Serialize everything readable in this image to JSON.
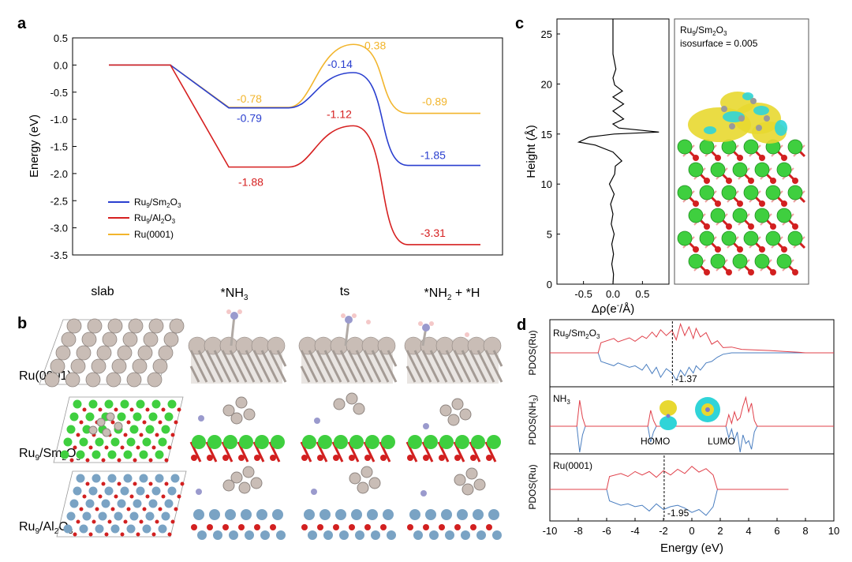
{
  "panels": {
    "a": "a",
    "b": "b",
    "c": "c",
    "d": "d"
  },
  "colors": {
    "sm2o3": "#2a3fcf",
    "al2o3": "#d62020",
    "ru0001": "#f2b52c",
    "pdos_up": "#e0404a",
    "pdos_down": "#4a7ec0",
    "ru_atom": "#c9bdb6",
    "sm_atom": "#3fcf3f",
    "o_atom": "#d22020",
    "al_atom": "#7aa3c4",
    "n_atom": "#9a9acd",
    "h_atom": "#f4c8c8",
    "iso_yellow": "#e8d830",
    "iso_cyan": "#30d4d8"
  },
  "chart_data": [
    {
      "id": "a",
      "type": "line",
      "ylabel": "Energy (eV)",
      "ylim": [
        -3.5,
        0.5
      ],
      "yticks": [
        "0.5",
        "0.0",
        "-0.5",
        "-1.0",
        "-1.5",
        "-2.0",
        "-2.5",
        "-3.0",
        "-3.5"
      ],
      "legend_position": "bottom-left",
      "series": [
        {
          "name_base": "Ru",
          "name_sub1": "9",
          "name_mid": "/Sm",
          "name_sub2": "2",
          "name_mid2": "O",
          "name_sub3": "3",
          "color": "#2a3fcf",
          "states": [
            0,
            -0.79,
            -0.14,
            -1.85
          ],
          "labels": [
            "-0.79",
            "-0.14",
            "-1.85"
          ]
        },
        {
          "name_base": "Ru",
          "name_sub1": "9",
          "name_mid": "/Al",
          "name_sub2": "2",
          "name_mid2": "O",
          "name_sub3": "3",
          "color": "#d62020",
          "states": [
            0,
            -1.88,
            -1.12,
            -3.31
          ],
          "labels": [
            "-1.88",
            "-1.12",
            "-3.31"
          ]
        },
        {
          "name": "Ru(0001)",
          "color": "#f2b52c",
          "states": [
            0,
            -0.78,
            0.38,
            -0.89
          ],
          "labels": [
            "-0.78",
            "0.38",
            "-0.89"
          ]
        }
      ]
    },
    {
      "id": "c",
      "type": "line",
      "xlabel_pre": "Δρ(e",
      "xlabel_sup": "-",
      "xlabel_post": "/Å)",
      "ylabel": "Height (Å)",
      "xlim": [
        -0.95,
        0.95
      ],
      "ylim": [
        0,
        26.5
      ],
      "xticks": [
        "-0.5",
        "0.0",
        "0.5"
      ],
      "yticks": [
        "0",
        "5",
        "10",
        "15",
        "20",
        "25"
      ],
      "series": [
        {
          "name": "charge difference",
          "color": "#000000",
          "x": [
            0,
            0.01,
            -0.02,
            0.01,
            -0.02,
            0.02,
            -0.03,
            0.0,
            -0.04,
            0.02,
            -0.06,
            0.03,
            0.04,
            0.15,
            0.0,
            -0.3,
            -0.58,
            -0.4,
            0.02,
            0.78,
            0.1,
            0.0,
            0.18,
            0.0,
            0.18,
            0.0,
            0.16,
            0.03,
            0.0,
            0.05,
            0.0,
            0.0
          ],
          "y": [
            0,
            1,
            2,
            3,
            4,
            5,
            6,
            7,
            8,
            9,
            10,
            11,
            11.8,
            12.3,
            13.2,
            13.9,
            14.2,
            14.7,
            15.0,
            15.2,
            15.6,
            16.0,
            16.5,
            17.3,
            18.0,
            18.7,
            19.3,
            19.9,
            20.6,
            21.5,
            23,
            26.5
          ]
        }
      ],
      "annotation_line1_base": "Ru",
      "annotation_line1_sub1": "9",
      "annotation_line1_mid": "/Sm",
      "annotation_line1_sub2": "2",
      "annotation_line1_mid2": "O",
      "annotation_line1_sub3": "3",
      "annotation_line2": "isosurface = 0.005"
    },
    {
      "id": "d",
      "type": "line",
      "xlabel": "Energy (eV)",
      "xlim": [
        -10,
        10
      ],
      "xticks": [
        "-10",
        "-8",
        "-6",
        "-4",
        "-2",
        "0",
        "2",
        "4",
        "6",
        "8",
        "10"
      ],
      "subpanels": [
        {
          "ylabel": "PDOS(Ru)",
          "title_base": "Ru",
          "title_sub1": "9",
          "title_mid": "/Sm",
          "title_sub2": "2",
          "title_mid2": "O",
          "title_sub3": "3",
          "dline": -1.37,
          "dlabel": "-1.37",
          "up_x": [
            -10,
            -6.6,
            -6.4,
            -5.5,
            -5.2,
            -4.4,
            -4.0,
            -3.5,
            -3.2,
            -2.8,
            -2.5,
            -2.2,
            -1.8,
            -1.4,
            -1.1,
            -0.8,
            -0.5,
            -0.2,
            0.1,
            0.3,
            0.6,
            1.0,
            1.4,
            1.8,
            2.2,
            2.8,
            3.5,
            4.5,
            5.5,
            6.5,
            7.5,
            8.0,
            10
          ],
          "up_y": [
            0,
            0,
            0.35,
            0.5,
            0.38,
            0.52,
            0.4,
            0.58,
            0.5,
            0.72,
            0.55,
            0.8,
            0.6,
            0.78,
            0.45,
            1.0,
            0.6,
            0.9,
            0.5,
            0.85,
            0.55,
            0.7,
            0.3,
            0.42,
            0.18,
            0.2,
            0.12,
            0.1,
            0.08,
            0.05,
            0.02,
            0,
            0
          ],
          "down_x": [
            -10,
            -6.6,
            -6.4,
            -5.5,
            -5.2,
            -4.4,
            -4.0,
            -3.5,
            -3.2,
            -2.8,
            -2.5,
            -2.2,
            -1.8,
            -1.4,
            -1.1,
            -0.8,
            -0.5,
            -0.2,
            0.1,
            0.3,
            0.6,
            1.0,
            1.4,
            1.8,
            2.2,
            2.8,
            10
          ],
          "down_y": [
            0,
            0,
            -0.3,
            -0.45,
            -0.35,
            -0.5,
            -0.45,
            -0.6,
            -0.4,
            -0.72,
            -0.5,
            -0.85,
            -0.55,
            -0.7,
            -0.95,
            -0.6,
            -0.8,
            -0.5,
            -0.7,
            -0.45,
            -0.6,
            -0.35,
            -0.3,
            -0.15,
            -0.05,
            0,
            0
          ]
        },
        {
          "ylabel": "PDOS(NH",
          "ylabel_sub": "3",
          "ylabel_end": ")",
          "title_base": "NH",
          "title_sub1": "3",
          "homo": "HOMO",
          "lumo": "LUMO",
          "up_x": [
            -10,
            -8.1,
            -7.9,
            -7.7,
            -7.5,
            -3.1,
            -2.9,
            -2.7,
            -2.5,
            2.4,
            2.6,
            2.8,
            3.0,
            3.2,
            3.4,
            3.6,
            3.8,
            4.0,
            4.2,
            4.4,
            4.6,
            5.4,
            10
          ],
          "up_y": [
            0,
            0,
            0.9,
            0.3,
            0,
            0,
            0.55,
            0.2,
            0,
            0,
            0.4,
            0.1,
            0.5,
            0.2,
            0.3,
            0.7,
            1.0,
            0.5,
            0.8,
            0.2,
            0,
            0,
            0
          ],
          "down_x": [
            -10,
            -8.1,
            -7.9,
            -7.7,
            -7.5,
            -3.1,
            -2.9,
            -2.7,
            -2.5,
            2.4,
            2.6,
            2.8,
            3.0,
            3.2,
            3.4,
            3.6,
            3.8,
            4.0,
            4.2,
            4.4,
            4.6,
            5.4,
            10
          ],
          "down_y": [
            0,
            0,
            -0.9,
            -0.3,
            0,
            0,
            -0.55,
            -0.2,
            0,
            0,
            -0.4,
            -0.1,
            -0.5,
            -0.2,
            -0.9,
            -0.3,
            -0.6,
            -0.5,
            -0.8,
            -0.2,
            0,
            0,
            0
          ]
        },
        {
          "ylabel": "PDOS(Ru)",
          "title": "Ru(0001)",
          "dline": -1.95,
          "dlabel": "-1.95",
          "up_x": [
            -10,
            -6.0,
            -5.8,
            -5.0,
            -4.5,
            -4.0,
            -3.5,
            -3.0,
            -2.5,
            -2.0,
            -1.5,
            -1.0,
            -0.5,
            0.0,
            0.5,
            1.0,
            1.5,
            1.8,
            2.2,
            3.0,
            6.8
          ],
          "up_y": [
            0,
            0,
            0.45,
            0.55,
            0.45,
            0.62,
            0.5,
            0.62,
            0.42,
            0.65,
            0.5,
            0.7,
            0.55,
            0.8,
            0.6,
            0.72,
            0.5,
            0,
            0,
            0,
            0
          ],
          "down_x": [
            -10,
            -6.0,
            -5.8,
            -5.0,
            -4.5,
            -4.0,
            -3.5,
            -3.0,
            -2.5,
            -2.0,
            -1.5,
            -1.0,
            -0.5,
            0.0,
            0.5,
            1.0,
            1.5,
            1.8,
            2.2,
            3.0,
            6.8
          ],
          "down_y": [
            0,
            0,
            -0.4,
            -0.55,
            -0.5,
            -0.6,
            -0.55,
            -0.75,
            -0.5,
            -0.7,
            -0.6,
            -0.55,
            -0.65,
            -0.8,
            -0.7,
            -0.9,
            -0.6,
            0,
            0,
            0,
            0
          ]
        }
      ]
    }
  ],
  "panel_b": {
    "col_headers": [
      {
        "id": "slab",
        "text": "slab"
      },
      {
        "id": "nh3",
        "pre": "*NH",
        "sub": "3"
      },
      {
        "id": "ts",
        "text": "ts"
      },
      {
        "id": "nh2h",
        "pre": "*NH",
        "sub": "2",
        "post": " + *H"
      }
    ],
    "row_labels": [
      {
        "text": "Ru(0001)"
      },
      {
        "base": "Ru",
        "sub1": "9",
        "mid": "/Sm",
        "sub2": "2",
        "mid2": "O",
        "sub3": "3"
      },
      {
        "base": "Ru",
        "sub1": "9",
        "mid": "/Al",
        "sub2": "2",
        "mid2": "O",
        "sub3": "3"
      }
    ]
  }
}
